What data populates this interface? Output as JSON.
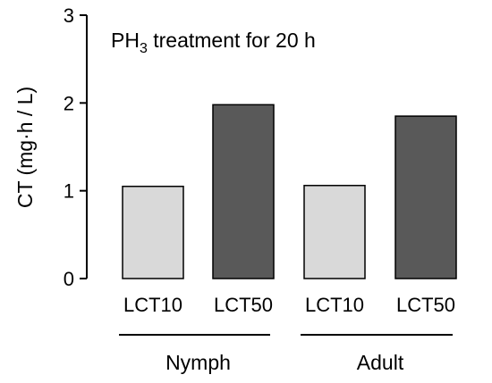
{
  "chart_data": {
    "type": "bar",
    "title": "",
    "annotation": {
      "prefix": "PH",
      "subscript": "3",
      "suffix": " treatment for 20 h"
    },
    "ylabel": "CT (mg·h / L)",
    "xlabel": "",
    "ylim": [
      0,
      3
    ],
    "yticks": [
      "0",
      "1",
      "2",
      "3"
    ],
    "categories": [
      "LCT10",
      "LCT50",
      "LCT10",
      "LCT50"
    ],
    "values": [
      1.05,
      1.98,
      1.06,
      1.85
    ],
    "bar_colors": [
      "#d9d9d9",
      "#595959",
      "#d9d9d9",
      "#595959"
    ],
    "groups": [
      {
        "label": "Nymph",
        "categories": [
          0,
          1
        ]
      },
      {
        "label": "Adult",
        "categories": [
          2,
          3
        ]
      }
    ],
    "grid": false,
    "legend": "none"
  }
}
